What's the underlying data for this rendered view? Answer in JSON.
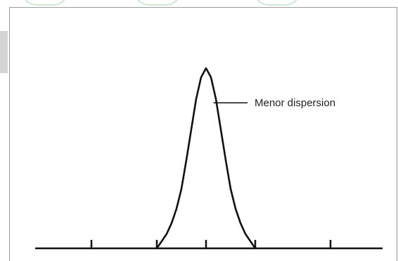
{
  "chart_data": {
    "type": "line",
    "title": "",
    "xlabel": "",
    "ylabel": "",
    "xlim": [
      -4,
      4
    ],
    "ylim": [
      0,
      1
    ],
    "x_ticks": [
      -3,
      -1,
      0,
      1,
      3
    ],
    "series": [
      {
        "values_note": "",
        "x": [
          -1.0,
          -0.9,
          -0.8,
          -0.7,
          -0.6,
          -0.5,
          -0.4,
          -0.3,
          -0.2,
          -0.1,
          0.0,
          0.1,
          0.2,
          0.3,
          0.4,
          0.5,
          0.6,
          0.7,
          0.8,
          0.9,
          1.0
        ],
        "values": [
          0.0,
          0.04,
          0.08,
          0.14,
          0.22,
          0.33,
          0.49,
          0.66,
          0.83,
          0.95,
          1.0,
          0.95,
          0.83,
          0.66,
          0.49,
          0.33,
          0.22,
          0.14,
          0.08,
          0.04,
          0.0
        ]
      }
    ],
    "annotations": [
      {
        "text": "Menor dispersion",
        "x": 0.15,
        "y": 0.82
      }
    ],
    "grid": false,
    "legend": "none",
    "colors": {
      "curve": "#111111",
      "axis": "#111111",
      "frame": "#9a9a9a"
    }
  }
}
